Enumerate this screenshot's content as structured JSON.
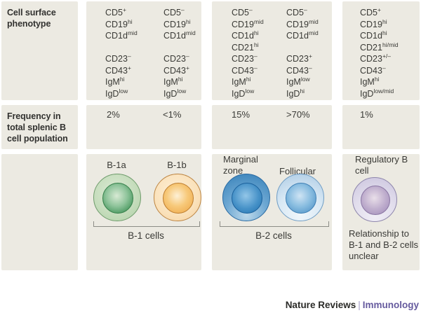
{
  "row_labels": {
    "phenotype": "Cell surface phenotype",
    "frequency": "Frequency in total splenic B cell population"
  },
  "columns": [
    {
      "name": "B-1a",
      "frequency": "2%",
      "markers": [
        [
          "CD5",
          "+"
        ],
        [
          "CD19",
          "hi"
        ],
        [
          "CD1d",
          "mid"
        ],
        null,
        [
          "CD23",
          "–"
        ],
        [
          "CD43",
          "+"
        ],
        [
          "IgM",
          "hi"
        ],
        [
          "IgD",
          "low"
        ]
      ]
    },
    {
      "name": "B-1b",
      "frequency": "<1%",
      "markers": [
        [
          "CD5",
          "–"
        ],
        [
          "CD19",
          "hi"
        ],
        [
          "CD1d",
          "mid"
        ],
        null,
        [
          "CD23",
          "–"
        ],
        [
          "CD43",
          "+"
        ],
        [
          "IgM",
          "hi"
        ],
        [
          "IgD",
          "low"
        ]
      ]
    },
    {
      "name": "Marginal zone",
      "frequency": "15%",
      "markers": [
        [
          "CD5",
          "–"
        ],
        [
          "CD19",
          "mid"
        ],
        [
          "CD1d",
          "hi"
        ],
        [
          "CD21",
          "hi"
        ],
        [
          "CD23",
          "–"
        ],
        [
          "CD43",
          "–"
        ],
        [
          "IgM",
          "hi"
        ],
        [
          "IgD",
          "low"
        ]
      ]
    },
    {
      "name": "Follicular",
      "frequency": ">70%",
      "markers": [
        [
          "CD5",
          "–"
        ],
        [
          "CD19",
          "mid"
        ],
        [
          "CD1d",
          "mid"
        ],
        null,
        [
          "CD23",
          "+"
        ],
        [
          "CD43",
          "–"
        ],
        [
          "IgM",
          "low"
        ],
        [
          "IgD",
          "hi"
        ]
      ]
    },
    {
      "name": "Regulatory B cell",
      "frequency": "1%",
      "markers": [
        [
          "CD5",
          "+"
        ],
        [
          "CD19",
          "hi"
        ],
        [
          "CD1d",
          "hi"
        ],
        [
          "CD21",
          "hi/mid"
        ],
        [
          "CD23",
          "+/–"
        ],
        [
          "CD43",
          "–"
        ],
        [
          "IgM",
          "hi"
        ],
        [
          "IgD",
          "low/mid"
        ]
      ]
    }
  ],
  "groups": [
    {
      "label": "B-1 cells"
    },
    {
      "label": "B-2 cells"
    }
  ],
  "regulatory_note": "Relationship to B-1 and B-2 cells unclear",
  "footer": {
    "brand": "Nature Reviews",
    "separator": "|",
    "journal": "Immunology"
  },
  "colors": {
    "panel_bg": "#eceae2",
    "text": "#3a3a36",
    "b1a_cell": "#c6ddbd",
    "b1a_nucleus": "#4a9960",
    "b1b_cell": "#fae1ba",
    "b1b_nucleus": "#eda443",
    "marginal_zone_cell": "#6ea8d3",
    "marginal_zone_nucleus": "#1f70ae",
    "follicular_cell": "#d8e8f4",
    "follicular_nucleus": "#4589c1",
    "regulatory_cell": "#e1ddec",
    "regulatory_nucleus": "#9d88b7",
    "footer_brand": "#2b2b28",
    "footer_journal": "#655a9e"
  }
}
